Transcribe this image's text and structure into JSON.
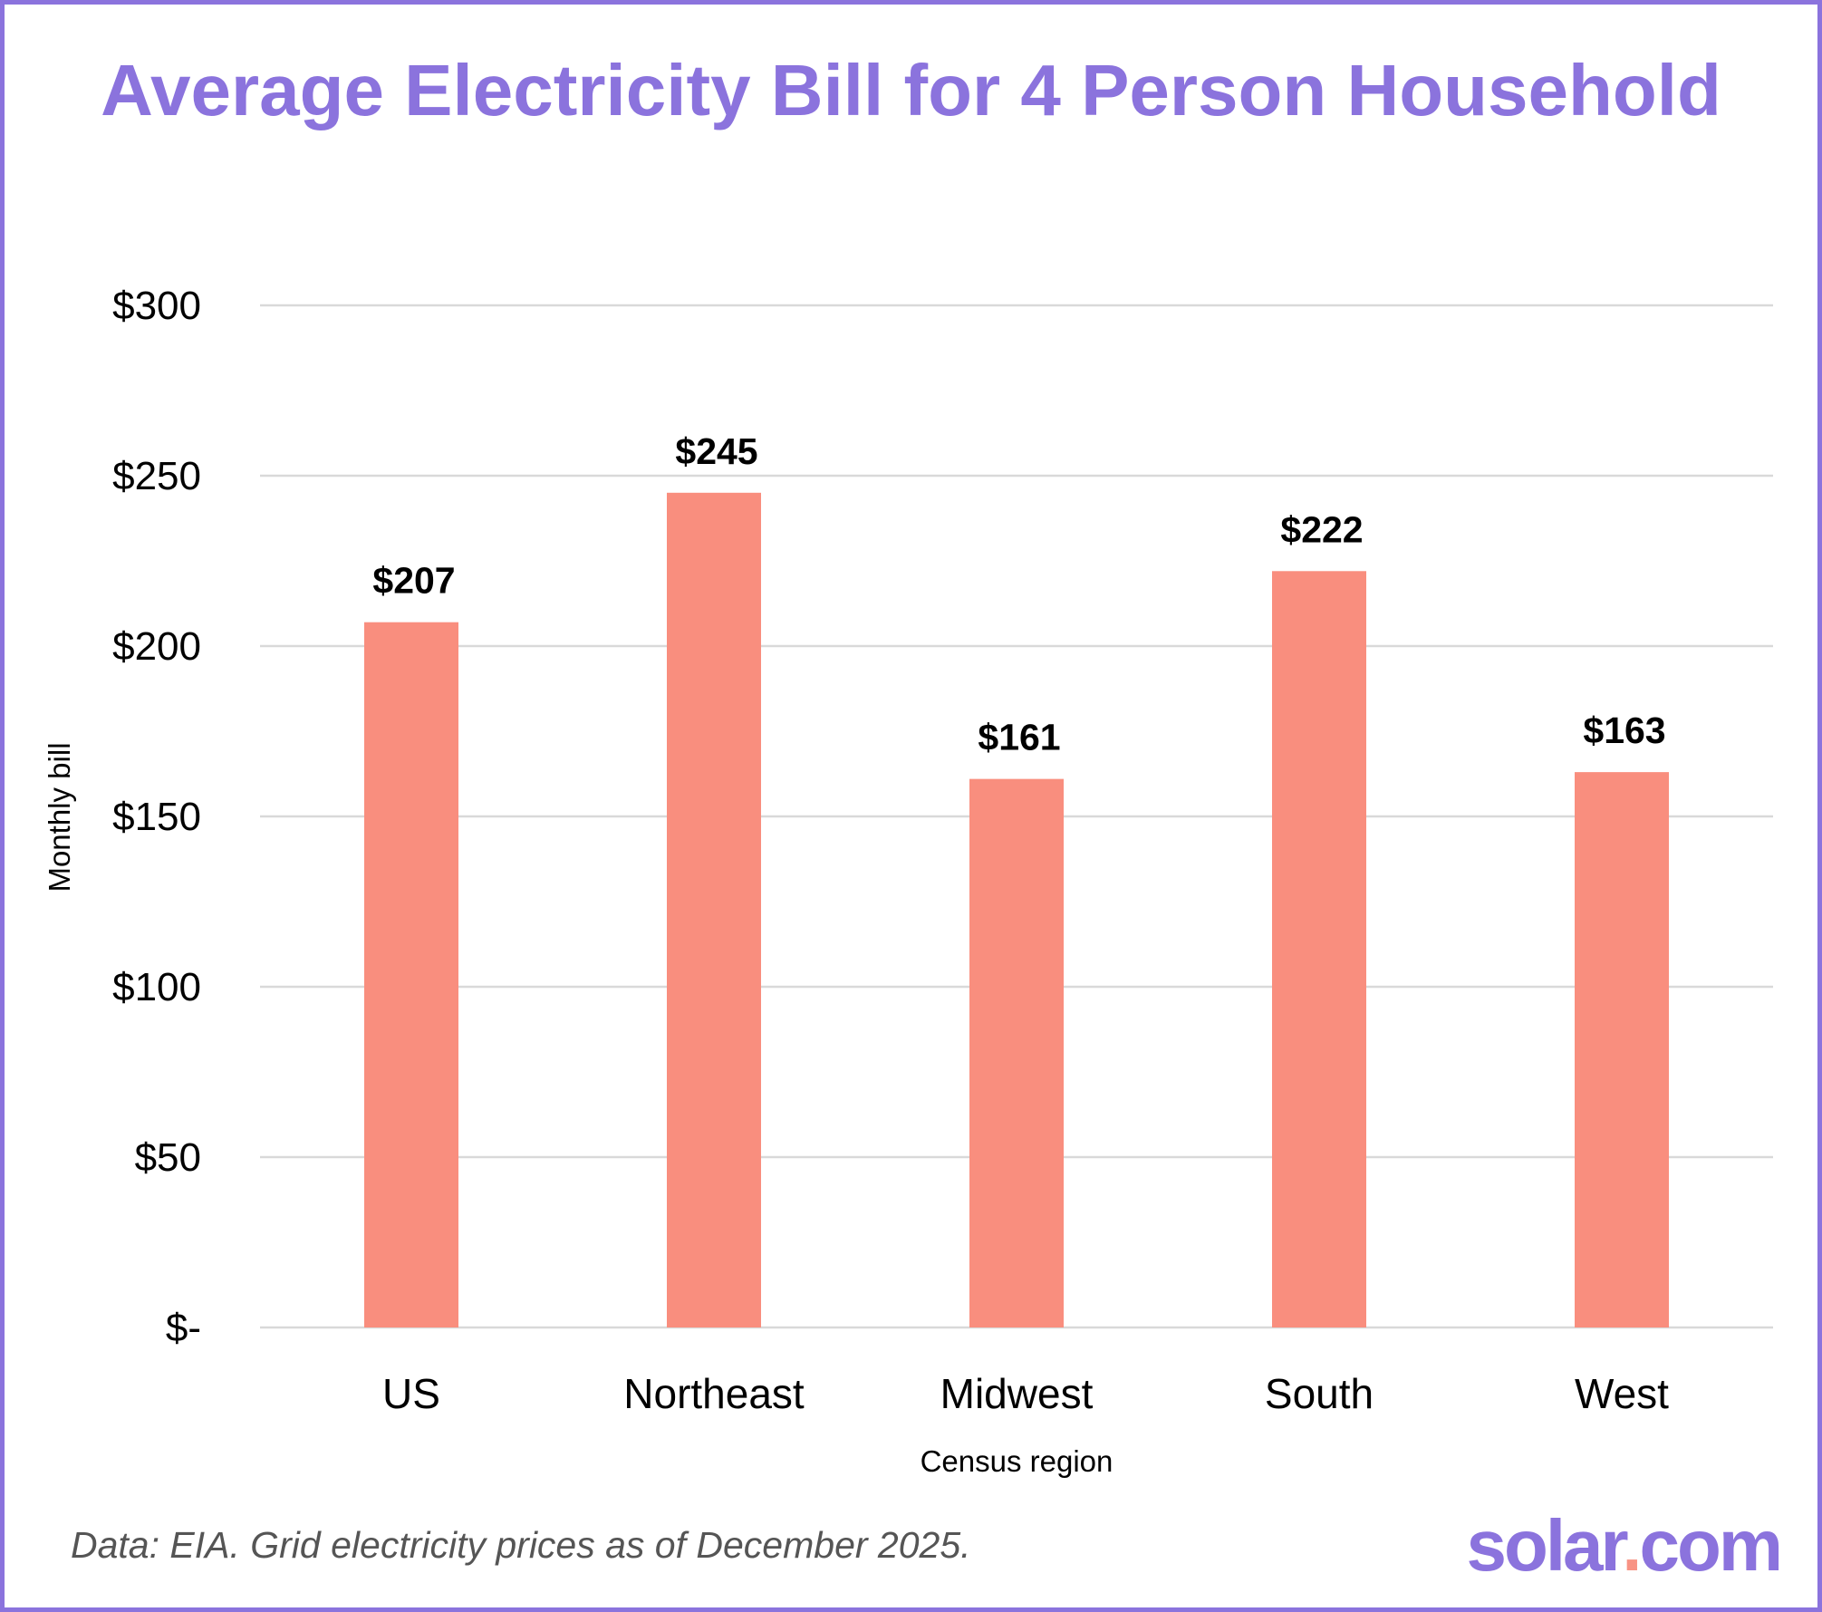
{
  "chart_data": {
    "type": "bar",
    "title": "Average Electricity Bill for 4 Person Household",
    "xlabel": "Census region",
    "ylabel": "Monthly bill",
    "categories": [
      "US",
      "Northeast",
      "Midwest",
      "South",
      "West"
    ],
    "values": [
      207,
      245,
      161,
      222,
      163
    ],
    "data_labels": [
      "$207",
      "$245",
      "$161",
      "$222",
      "$163"
    ],
    "ylim": [
      0,
      300
    ],
    "yticks": [
      0,
      50,
      100,
      150,
      200,
      250,
      300
    ],
    "ytick_labels": [
      "$-",
      "$50",
      "$100",
      "$150",
      "$200",
      "$250",
      "$300"
    ],
    "grid": true,
    "bar_color": "#f98e7e",
    "title_color": "#8b73dd"
  },
  "footnote": "Data: EIA. Grid electricity prices as of December 2025.",
  "logo": {
    "text_main": "solar",
    "text_dot": ".",
    "text_end": "com"
  }
}
